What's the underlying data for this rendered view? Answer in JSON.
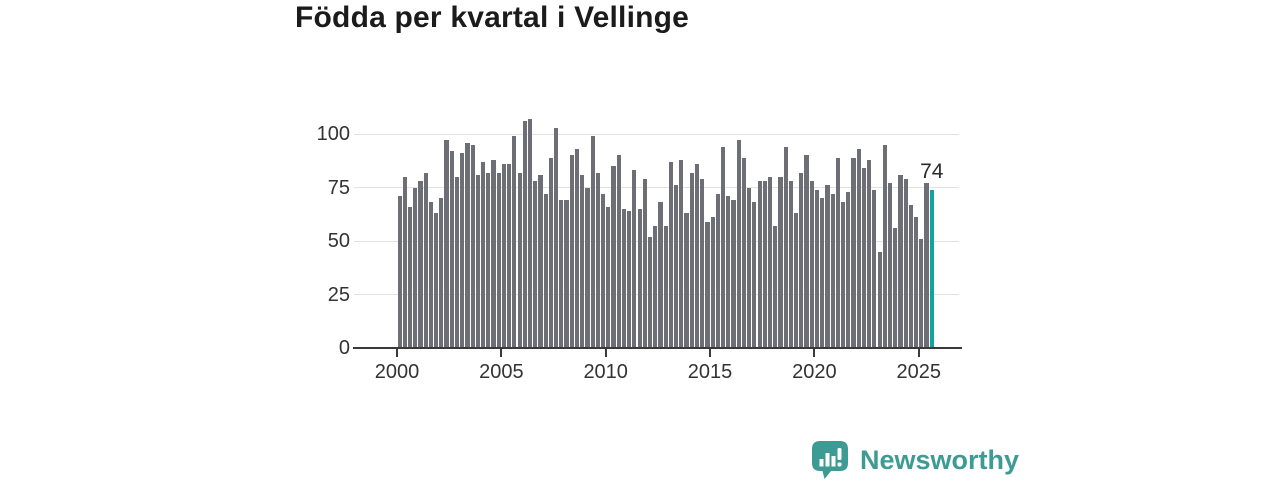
{
  "title": "Födda per kvartal i Vellinge",
  "chart_data": {
    "type": "bar",
    "title": "Födda per kvartal i Vellinge",
    "x_unit": "quarter",
    "x_start": "2000 Q1",
    "x_end": "2025 Q3",
    "values": [
      71,
      80,
      66,
      75,
      78,
      82,
      68,
      63,
      70,
      97,
      92,
      80,
      91,
      96,
      95,
      81,
      87,
      82,
      88,
      82,
      86,
      86,
      99,
      82,
      106,
      107,
      78,
      81,
      72,
      89,
      103,
      69,
      69,
      90,
      93,
      81,
      75,
      99,
      82,
      72,
      66,
      85,
      90,
      65,
      64,
      83,
      65,
      79,
      52,
      57,
      68,
      57,
      87,
      76,
      88,
      63,
      82,
      86,
      79,
      59,
      61,
      72,
      94,
      71,
      69,
      97,
      89,
      75,
      68,
      78,
      78,
      80,
      57,
      80,
      94,
      78,
      63,
      82,
      90,
      78,
      74,
      70,
      76,
      72,
      89,
      68,
      73,
      89,
      93,
      84,
      88,
      74,
      45,
      95,
      77,
      56,
      81,
      79,
      67,
      61,
      51,
      77,
      74
    ],
    "y_ticks": [
      0,
      25,
      50,
      75,
      100
    ],
    "ylim": [
      0,
      110
    ],
    "x_tick_years": [
      2000,
      2005,
      2010,
      2015,
      2020,
      2025
    ],
    "x_tick_labels": [
      "2000",
      "2005",
      "2010",
      "2015",
      "2020",
      "2025"
    ],
    "grid": true,
    "legend": "none",
    "highlight_index": 102,
    "highlight_label": "74",
    "bar_color": "#6e6e76",
    "highlight_color": "#12a3a0"
  },
  "colors": {
    "background": "#ffffff",
    "grid": "#e1e1e1",
    "axis": "#3a3a3a",
    "tick_label": "#333333",
    "title": "#1b1b1b",
    "brand_teal": "#3e9b94"
  },
  "footer": {
    "brand": "Newsworthy"
  }
}
